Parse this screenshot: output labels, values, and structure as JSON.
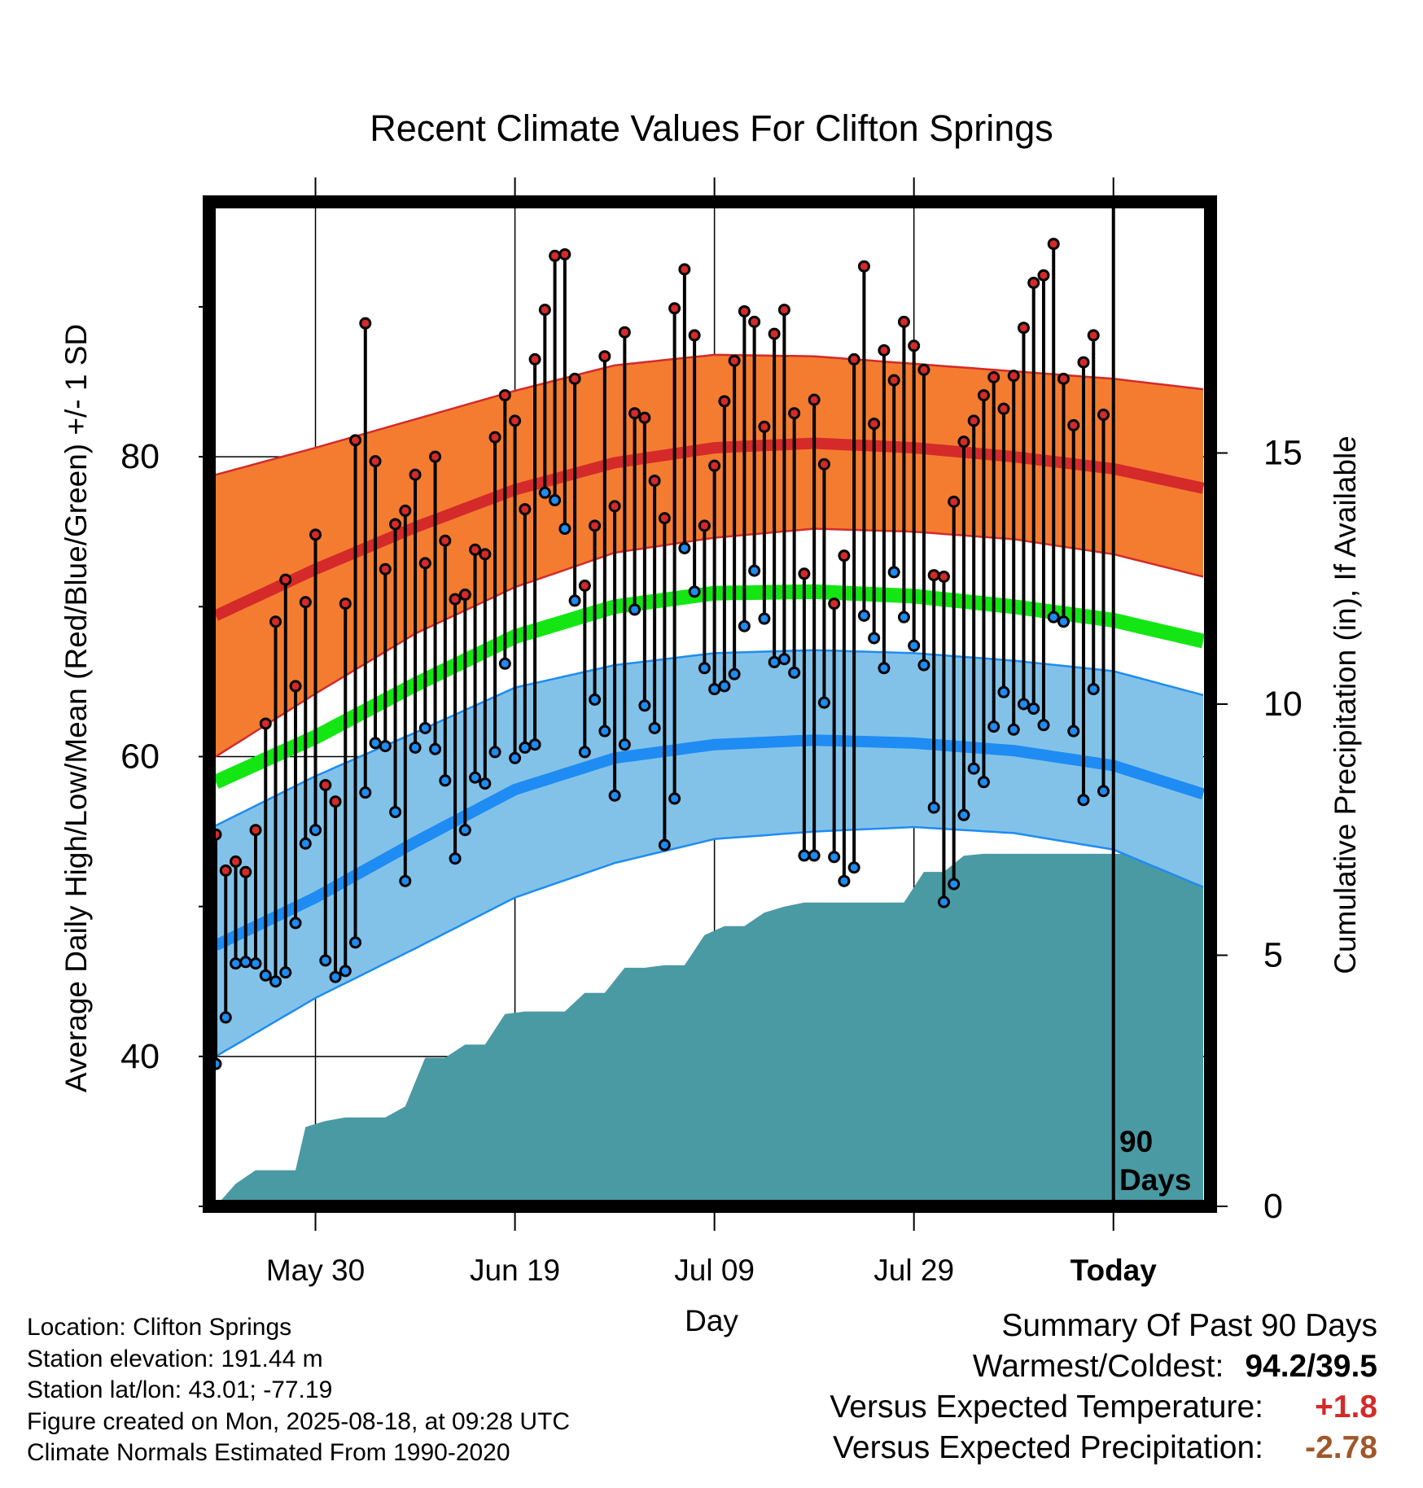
{
  "title": "Recent Climate Values For Clifton Springs",
  "y_left_label": "Average Daily High/Low/Mean (Red/Blue/Green) +/- 1 SD",
  "y_right_label": "Cumulative Precipitation (in), If Available",
  "x_label": "Day",
  "today_marker_label_line1": "90",
  "today_marker_label_line2": "Days",
  "info": {
    "location": "Location: Clifton Springs",
    "elevation": "Station elevation: 191.44 m",
    "latlon": "Station lat/lon: 43.01; -77.19",
    "created": "Figure created on Mon, 2025-08-18, at 09:28 UTC",
    "normals": "Climate Normals Estimated From 1990-2020"
  },
  "summary": {
    "heading": "Summary Of Past 90 Days",
    "warm_cold_label": "Warmest/Coldest:",
    "warm_cold_value": "94.2/39.5",
    "temp_label": "Versus Expected Temperature:",
    "temp_value": "+1.8",
    "precip_label": "Versus Expected Precipitation:",
    "precip_value": "-2.78"
  },
  "colors": {
    "high_band": "#f47c30",
    "high_line": "#d42a2a",
    "low_band": "#83c2e8",
    "low_line": "#1e8cf2",
    "mean_line": "#14e614",
    "precip_fill": "#4a9aa4",
    "high_point": "#d42a2a",
    "low_point": "#1e8cf2",
    "temp_value": "#d42a2a",
    "precip_value": "#a0582a"
  },
  "chart_data": {
    "type": "line",
    "x_axis": {
      "unit": "days relative to today",
      "xlim": [
        -90,
        9
      ],
      "ticks": [
        {
          "day": -80,
          "label": "May 30"
        },
        {
          "day": -60,
          "label": "Jun 19"
        },
        {
          "day": -40,
          "label": "Jul 09"
        },
        {
          "day": -20,
          "label": "Jul 29"
        },
        {
          "day": 0,
          "label": "Today"
        }
      ]
    },
    "y_left": {
      "ylim": [
        30,
        97
      ],
      "ticks": [
        40,
        60,
        80
      ],
      "minor_ticks": [
        50,
        70,
        90
      ]
    },
    "y_right": {
      "ylim": [
        0,
        20
      ],
      "ticks": [
        0,
        5,
        10,
        15
      ]
    },
    "normals": {
      "days": [
        -90,
        -80,
        -70,
        -60,
        -50,
        -40,
        -30,
        -20,
        -10,
        0,
        9
      ],
      "high_mean": [
        69.4,
        72.5,
        75.3,
        77.8,
        79.6,
        80.6,
        80.9,
        80.6,
        80.0,
        79.2,
        77.9
      ],
      "high_upper": [
        78.8,
        80.6,
        82.5,
        84.4,
        86.1,
        86.8,
        86.7,
        86.2,
        85.7,
        85.2,
        84.5
      ],
      "high_lower": [
        60.0,
        64.2,
        68.2,
        71.3,
        73.6,
        74.6,
        75.2,
        75.0,
        74.5,
        73.5,
        72.0
      ],
      "mean": [
        58.3,
        61.3,
        64.8,
        68.0,
        70.0,
        70.9,
        71.0,
        70.7,
        70.0,
        69.1,
        67.7
      ],
      "low_mean": [
        47.4,
        50.6,
        54.3,
        57.8,
        59.9,
        60.8,
        61.1,
        60.9,
        60.4,
        59.4,
        57.5
      ],
      "low_upper": [
        55.4,
        58.7,
        61.6,
        64.6,
        66.1,
        66.9,
        67.1,
        66.9,
        66.4,
        65.7,
        64.1
      ],
      "low_lower": [
        40.0,
        43.9,
        47.2,
        50.6,
        52.9,
        54.5,
        55.0,
        55.3,
        54.9,
        53.8,
        51.3
      ]
    },
    "observations": {
      "days": [
        -90,
        -89,
        -88,
        -87,
        -86,
        -85,
        -84,
        -83,
        -82,
        -81,
        -80,
        -79,
        -78,
        -77,
        -76,
        -75,
        -74,
        -73,
        -72,
        -71,
        -70,
        -69,
        -68,
        -67,
        -66,
        -65,
        -64,
        -63,
        -62,
        -61,
        -60,
        -59,
        -58,
        -57,
        -56,
        -55,
        -54,
        -53,
        -52,
        -51,
        -50,
        -49,
        -48,
        -47,
        -46,
        -45,
        -44,
        -43,
        -42,
        -41,
        -40,
        -39,
        -38,
        -37,
        -36,
        -35,
        -34,
        -33,
        -32,
        -31,
        -30,
        -29,
        -28,
        -27,
        -26,
        -25,
        -24,
        -23,
        -22,
        -21,
        -20,
        -19,
        -18,
        -17,
        -16,
        -15,
        -14,
        -13,
        -12,
        -11,
        -10,
        -9,
        -8,
        -7,
        -6,
        -5,
        -4,
        -3,
        -2,
        -1,
        0
      ],
      "high": [
        54.8,
        52.4,
        53.0,
        52.3,
        55.1,
        62.2,
        69.0,
        71.8,
        64.7,
        70.3,
        74.8,
        58.1,
        57.0,
        70.2,
        81.1,
        88.9,
        79.7,
        72.5,
        75.5,
        76.4,
        78.8,
        72.9,
        80.0,
        74.4,
        70.5,
        70.8,
        73.8,
        73.5,
        81.3,
        84.1,
        82.4,
        76.5,
        86.5,
        89.8,
        93.4,
        93.5,
        85.2,
        71.4,
        75.4,
        86.7,
        76.7,
        88.3,
        82.9,
        82.6,
        78.4,
        75.9,
        89.9,
        92.5,
        88.1,
        75.4,
        79.4,
        83.7,
        86.4,
        89.7,
        89.0,
        82.0,
        88.2,
        89.8,
        82.9,
        72.2,
        83.8,
        79.5,
        70.2,
        73.4,
        86.5,
        92.7,
        82.2,
        87.1,
        85.1,
        89.0,
        87.4,
        85.8,
        72.1,
        72.0,
        77.0,
        81.0,
        82.4,
        84.1,
        85.3,
        83.2,
        85.4,
        88.6,
        91.6,
        92.1,
        94.2,
        85.2,
        82.1,
        86.3,
        88.1,
        82.8,
        null
      ],
      "low": [
        39.5,
        42.6,
        46.2,
        46.3,
        46.2,
        45.4,
        45.0,
        45.6,
        48.9,
        54.2,
        55.1,
        46.4,
        45.3,
        45.7,
        47.6,
        57.6,
        60.9,
        60.7,
        56.3,
        51.7,
        60.6,
        61.9,
        60.5,
        58.4,
        53.2,
        55.1,
        58.6,
        58.2,
        60.3,
        66.2,
        59.9,
        60.6,
        60.8,
        77.6,
        77.1,
        75.2,
        70.4,
        60.3,
        63.8,
        61.7,
        57.4,
        60.8,
        69.8,
        63.4,
        61.9,
        54.1,
        57.2,
        73.9,
        71.0,
        65.9,
        64.5,
        64.7,
        65.5,
        68.7,
        72.4,
        69.2,
        66.3,
        66.5,
        65.6,
        53.4,
        53.4,
        63.6,
        53.3,
        51.7,
        52.6,
        69.4,
        67.9,
        65.9,
        72.3,
        69.3,
        67.4,
        66.1,
        56.6,
        50.3,
        51.5,
        56.1,
        59.2,
        58.3,
        62.0,
        64.3,
        61.8,
        63.5,
        63.2,
        62.1,
        69.3,
        69.0,
        61.7,
        57.1,
        64.5,
        57.7,
        null
      ]
    },
    "precipitation": {
      "days": [
        -90,
        -88,
        -86,
        -84,
        -82,
        -81,
        -79,
        -77,
        -75,
        -73,
        -71,
        -69,
        -67,
        -65,
        -63,
        -61,
        -59,
        -57,
        -55,
        -53,
        -51,
        -49,
        -47,
        -45,
        -43,
        -41,
        -39,
        -37,
        -35,
        -33,
        -31,
        -29,
        -27,
        -25,
        -23,
        -21,
        -19,
        -17,
        -15,
        -13,
        -11,
        -9,
        -7,
        -5,
        -3,
        -1,
        0,
        9
      ],
      "cumulative": [
        0.0,
        0.45,
        0.72,
        0.72,
        0.72,
        1.58,
        1.7,
        1.77,
        1.77,
        1.77,
        1.99,
        2.96,
        2.96,
        3.22,
        3.22,
        3.83,
        3.88,
        3.88,
        3.88,
        4.25,
        4.25,
        4.75,
        4.75,
        4.8,
        4.8,
        5.4,
        5.58,
        5.58,
        5.85,
        5.97,
        6.05,
        6.05,
        6.05,
        6.05,
        6.05,
        6.05,
        6.66,
        6.66,
        6.98,
        7.02,
        7.02,
        7.02,
        7.02,
        7.02,
        7.02,
        7.02,
        7.02,
        7.02
      ]
    }
  }
}
